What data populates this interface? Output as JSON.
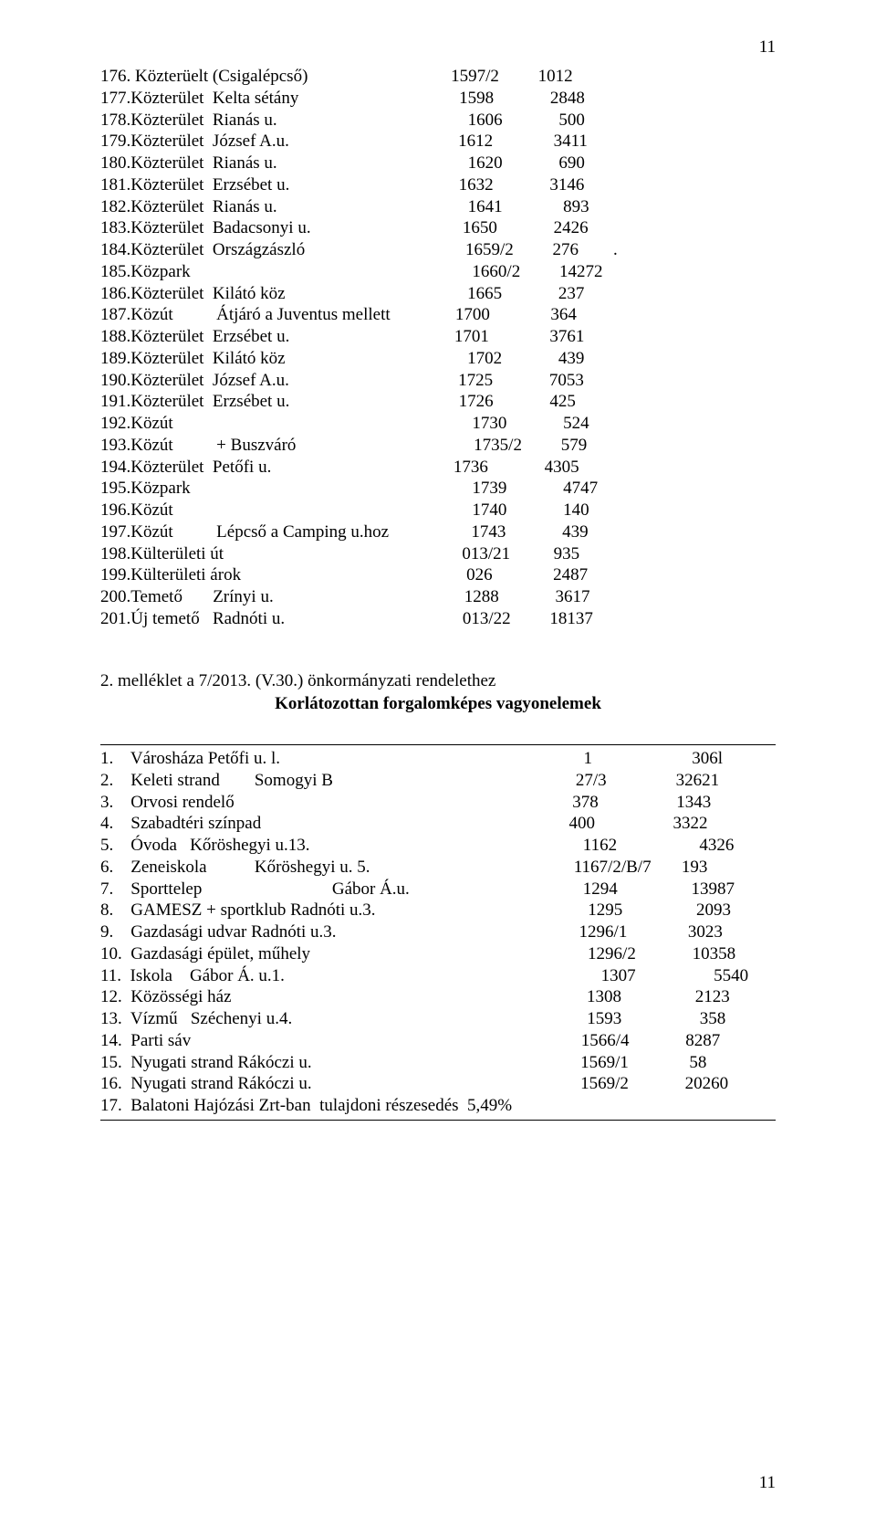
{
  "page_number_top": "11",
  "page_number_bottom": "11",
  "list1_cols": {
    "c1": 42,
    "c2": 52,
    "c3": 59
  },
  "list1": [
    {
      "a": "176. Közterüelt (Csigalépcső)",
      "b": "1597/2",
      "c": "1012"
    },
    {
      "a": "177.Közterület  Kelta sétány",
      "b": "1598",
      "c": "2848"
    },
    {
      "a": "178.Közterület  Rianás u.",
      "b": "1606",
      "c": "500"
    },
    {
      "a": "179.Közterület  József A.u.",
      "b": "1612",
      "c": "3411"
    },
    {
      "a": "180.Közterület  Rianás u.",
      "b": "1620",
      "c": "690"
    },
    {
      "a": "181.Közterület  Erzsébet u.",
      "b": "1632",
      "c": "3146"
    },
    {
      "a": "182.Közterület  Rianás u.",
      "b": "1641",
      "c": "893"
    },
    {
      "a": "183.Közterület  Badacsonyi u.",
      "b": "1650",
      "c": "2426"
    },
    {
      "a": "184.Közterület  Országzászló",
      "b": "1659/2",
      "c": "276",
      "d": "."
    },
    {
      "a": "185.Közpark",
      "b": "1660/2",
      "c": "14272"
    },
    {
      "a": "186.Közterület  Kilátó köz",
      "b": "1665",
      "c": "237"
    },
    {
      "a": "187.Közút          Átjáró a Juventus mellett",
      "b": "1700",
      "c": "364"
    },
    {
      "a": "188.Közterület  Erzsébet u.",
      "b": "1701",
      "c": "3761"
    },
    {
      "a": "189.Közterület  Kilátó köz",
      "b": "1702",
      "c": "439"
    },
    {
      "a": "190.Közterület  József A.u.",
      "b": "1725",
      "c": "7053"
    },
    {
      "a": "191.Közterület  Erzsébet u.",
      "b": "1726",
      "c": "425"
    },
    {
      "a": "192.Közút",
      "b": "1730",
      "c": "524"
    },
    {
      "a": "193.Közút          + Buszváró",
      "b": "1735/2",
      "c": "579"
    },
    {
      "a": "194.Közterület  Petőfi u.",
      "b": "1736",
      "c": "4305"
    },
    {
      "a": "195.Közpark",
      "b": "1739",
      "c": "4747"
    },
    {
      "a": "196.Közút",
      "b": "1740",
      "c": "140"
    },
    {
      "a": "197.Közút          Lépcső a Camping u.hoz",
      "b": "1743",
      "c": "439"
    },
    {
      "a": "198.Külterületi út",
      "b": "013/21",
      "c": "935"
    },
    {
      "a": "199.Külterületi árok",
      "b": "026",
      "c": "2487"
    },
    {
      "a": "200.Temető       Zrínyi u.",
      "b": "1288",
      "c": "3617"
    },
    {
      "a": "201.Új temető   Radnóti u.",
      "b": "013/22",
      "c": "18137"
    }
  ],
  "heading_line1": "2.  melléklet a 7/2013. (V.30.) önkormányzati rendelethez",
  "heading_line2": "Korlátozottan forgalomképes vagyonelemek",
  "list2_cols": {
    "c1": 55,
    "c2": 67
  },
  "list2": [
    {
      "a": "1.    Városháza Petőfi u. l.",
      "b": "1",
      "c": "306l"
    },
    {
      "a": "2.    Keleti strand        Somogyi B",
      "b": "27/3",
      "c": "32621"
    },
    {
      "a": "3.    Orvosi rendelő",
      "b": "378",
      "c": "1343"
    },
    {
      "a": "4.    Szabadtéri színpad",
      "b": "400",
      "c": "3322"
    },
    {
      "a": "5.    Óvoda   Kőröshegyi u.13.",
      "b": "1162",
      "c": "4326"
    },
    {
      "a": "6.    Zeneiskola           Kőröshegyi u. 5.",
      "b": "1167/2/B/7",
      "c": "193"
    },
    {
      "a": "7.    Sporttelep                              Gábor Á.u.",
      "b": "1294",
      "c": "13987"
    },
    {
      "a": "8.    GAMESZ + sportklub Radnóti u.3.",
      "b": "1295",
      "c": "2093"
    },
    {
      "a": "9.    Gazdasági udvar Radnóti u.3.",
      "b": "1296/1",
      "c": "3023"
    },
    {
      "a": "10.  Gazdasági épület, műhely",
      "b": "1296/2",
      "c": "10358"
    },
    {
      "a": "11.  Iskola    Gábor Á. u.1.",
      "b": "1307",
      "c": "5540"
    },
    {
      "a": "12.  Közösségi ház",
      "b": "1308",
      "c": "2123"
    },
    {
      "a": "13.  Vízmű   Széchenyi u.4.",
      "b": "1593",
      "c": "358"
    },
    {
      "a": "14.  Parti sáv",
      "b": "1566/4",
      "c": "8287"
    },
    {
      "a": "15.  Nyugati strand Rákóczi u.",
      "b": "1569/1",
      "c": "58"
    },
    {
      "a": "16.  Nyugati strand Rákóczi u.",
      "b": "1569/2",
      "c": "20260"
    },
    {
      "a": "17.  Balatoni Hajózási Zrt-ban  tulajdoni részesedés  5,49%",
      "b": "",
      "c": ""
    }
  ]
}
